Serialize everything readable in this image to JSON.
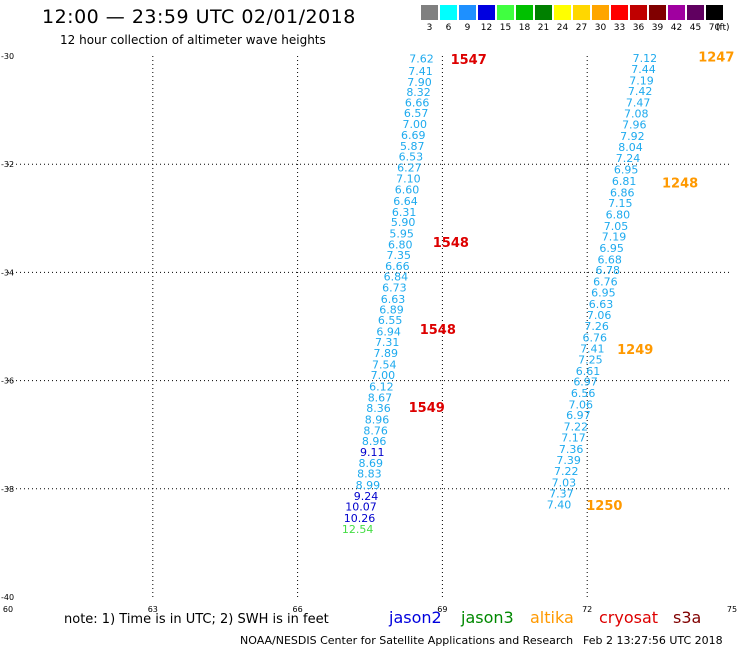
{
  "header": {
    "title": "12:00 — 23:59 UTC 02/01/2018",
    "subtitle": "12 hour collection of altimeter wave heights"
  },
  "color_scale": {
    "unit": "(ft)",
    "bins": [
      {
        "label": "3",
        "color": "#808080"
      },
      {
        "label": "6",
        "color": "#00ffff"
      },
      {
        "label": "9",
        "color": "#1e90ff"
      },
      {
        "label": "12",
        "color": "#0000e0"
      },
      {
        "label": "15",
        "color": "#40ff40"
      },
      {
        "label": "18",
        "color": "#00c000"
      },
      {
        "label": "21",
        "color": "#008000"
      },
      {
        "label": "24",
        "color": "#ffff00"
      },
      {
        "label": "27",
        "color": "#ffd700"
      },
      {
        "label": "30",
        "color": "#ffa500"
      },
      {
        "label": "33",
        "color": "#ff0000"
      },
      {
        "label": "36",
        "color": "#c00000"
      },
      {
        "label": "39",
        "color": "#800000"
      },
      {
        "label": "42",
        "color": "#a000a0"
      },
      {
        "label": "45",
        "color": "#600060"
      },
      {
        "label": "70",
        "color": "#000000"
      }
    ]
  },
  "notes": {
    "note": "note:  1) Time is in UTC;  2) SWH is in feet",
    "satellites": [
      {
        "name": "jason2",
        "color": "#0000dd"
      },
      {
        "name": "jason3",
        "color": "#008800"
      },
      {
        "name": "altika",
        "color": "#ff9900"
      },
      {
        "name": "cryosat",
        "color": "#dd0000"
      },
      {
        "name": "s3a",
        "color": "#800000"
      }
    ],
    "footer_left": "NOAA/NESDIS Center for Satellite Applications and Research",
    "footer_right": "Feb  2 13:27:56 UTC 2018"
  },
  "chart_data": {
    "type": "scatter",
    "xlim": [
      60,
      75
    ],
    "ylim": [
      -40,
      -30
    ],
    "x_ticks": [
      "60",
      "63",
      "66",
      "69",
      "72",
      "75"
    ],
    "y_ticks": [
      "-30",
      "-32",
      "-34",
      "-36",
      "-38",
      "-40"
    ],
    "grid": true,
    "series": [
      {
        "name": "track_west",
        "points": [
          {
            "x": 68.82,
            "y": -30.05,
            "v": "7.62",
            "c": "#1eaaee"
          },
          {
            "x": 68.8,
            "y": -30.28,
            "v": "7.41",
            "c": "#1eaaee"
          },
          {
            "x": 68.78,
            "y": -30.48,
            "v": "7.90",
            "c": "#1eaaee"
          },
          {
            "x": 68.76,
            "y": -30.67,
            "v": "8.32",
            "c": "#1eaaee"
          },
          {
            "x": 68.73,
            "y": -30.86,
            "v": "6.66",
            "c": "#1eaaee"
          },
          {
            "x": 68.71,
            "y": -31.05,
            "v": "6.57",
            "c": "#1eaaee"
          },
          {
            "x": 68.68,
            "y": -31.26,
            "v": "7.00",
            "c": "#1eaaee"
          },
          {
            "x": 68.65,
            "y": -31.46,
            "v": "6.69",
            "c": "#1eaaee"
          },
          {
            "x": 68.63,
            "y": -31.66,
            "v": "5.87",
            "c": "#1eaaee"
          },
          {
            "x": 68.6,
            "y": -31.86,
            "v": "6.53",
            "c": "#1eaaee"
          },
          {
            "x": 68.57,
            "y": -32.06,
            "v": "6.27",
            "c": "#1eaaee"
          },
          {
            "x": 68.55,
            "y": -32.26,
            "v": "7.10",
            "c": "#1eaaee"
          },
          {
            "x": 68.52,
            "y": -32.47,
            "v": "6.60",
            "c": "#1eaaee"
          },
          {
            "x": 68.49,
            "y": -32.68,
            "v": "6.64",
            "c": "#1eaaee"
          },
          {
            "x": 68.46,
            "y": -32.88,
            "v": "6.31",
            "c": "#1eaaee"
          },
          {
            "x": 68.44,
            "y": -33.07,
            "v": "5.90",
            "c": "#1eaaee"
          },
          {
            "x": 68.41,
            "y": -33.28,
            "v": "5.95",
            "c": "#1eaaee"
          },
          {
            "x": 68.38,
            "y": -33.48,
            "v": "6.80",
            "c": "#1eaaee"
          },
          {
            "x": 68.35,
            "y": -33.68,
            "v": "7.35",
            "c": "#1eaaee"
          },
          {
            "x": 68.32,
            "y": -33.88,
            "v": "6.66",
            "c": "#1eaaee"
          },
          {
            "x": 68.29,
            "y": -34.08,
            "v": "6.84",
            "c": "#1eaaee"
          },
          {
            "x": 68.26,
            "y": -34.28,
            "v": "6.73",
            "c": "#1eaaee"
          },
          {
            "x": 68.23,
            "y": -34.49,
            "v": "6.63",
            "c": "#1eaaee"
          },
          {
            "x": 68.2,
            "y": -34.69,
            "v": "6.89",
            "c": "#1eaaee"
          },
          {
            "x": 68.17,
            "y": -34.88,
            "v": "6.55",
            "c": "#1eaaee"
          },
          {
            "x": 68.14,
            "y": -35.09,
            "v": "6.94",
            "c": "#1eaaee"
          },
          {
            "x": 68.11,
            "y": -35.29,
            "v": "7.31",
            "c": "#1eaaee"
          },
          {
            "x": 68.08,
            "y": -35.49,
            "v": "7.89",
            "c": "#1eaaee"
          },
          {
            "x": 68.05,
            "y": -35.7,
            "v": "7.54",
            "c": "#1eaaee"
          },
          {
            "x": 68.02,
            "y": -35.9,
            "v": "7.00",
            "c": "#1eaaee"
          },
          {
            "x": 67.99,
            "y": -36.11,
            "v": "6.12",
            "c": "#1eaaee"
          },
          {
            "x": 67.96,
            "y": -36.31,
            "v": "8.67",
            "c": "#1eaaee"
          },
          {
            "x": 67.93,
            "y": -36.51,
            "v": "8.36",
            "c": "#1eaaee"
          },
          {
            "x": 67.9,
            "y": -36.72,
            "v": "8.96",
            "c": "#1eaaee"
          },
          {
            "x": 67.87,
            "y": -36.92,
            "v": "8.76",
            "c": "#1eaaee"
          },
          {
            "x": 67.84,
            "y": -37.12,
            "v": "8.96",
            "c": "#1eaaee"
          },
          {
            "x": 67.8,
            "y": -37.32,
            "v": "9.11",
            "c": "#0000cc"
          },
          {
            "x": 67.77,
            "y": -37.52,
            "v": "8.69",
            "c": "#1eaaee"
          },
          {
            "x": 67.74,
            "y": -37.72,
            "v": "8.83",
            "c": "#1eaaee"
          },
          {
            "x": 67.71,
            "y": -37.93,
            "v": "8.99",
            "c": "#1eaaee"
          },
          {
            "x": 67.67,
            "y": -38.13,
            "v": "9.24",
            "c": "#0000cc"
          },
          {
            "x": 67.64,
            "y": -38.33,
            "v": "10.07",
            "c": "#0000cc"
          },
          {
            "x": 67.61,
            "y": -38.54,
            "v": "10.26",
            "c": "#0000cc"
          },
          {
            "x": 67.57,
            "y": -38.74,
            "v": "12.54",
            "c": "#44dd44"
          }
        ]
      },
      {
        "name": "track_east",
        "points": [
          {
            "x": 73.45,
            "y": -30.04,
            "v": "7.12",
            "c": "#1eaaee"
          },
          {
            "x": 73.42,
            "y": -30.24,
            "v": "7.44",
            "c": "#1eaaee"
          },
          {
            "x": 73.38,
            "y": -30.45,
            "v": "7.19",
            "c": "#1eaaee"
          },
          {
            "x": 73.35,
            "y": -30.65,
            "v": "7.42",
            "c": "#1eaaee"
          },
          {
            "x": 73.31,
            "y": -30.86,
            "v": "7.47",
            "c": "#1eaaee"
          },
          {
            "x": 73.27,
            "y": -31.06,
            "v": "7.08",
            "c": "#1eaaee"
          },
          {
            "x": 73.23,
            "y": -31.27,
            "v": "7.96",
            "c": "#1eaaee"
          },
          {
            "x": 73.19,
            "y": -31.48,
            "v": "7.92",
            "c": "#1eaaee"
          },
          {
            "x": 73.15,
            "y": -31.68,
            "v": "8.04",
            "c": "#1eaaee"
          },
          {
            "x": 73.1,
            "y": -31.89,
            "v": "7.24",
            "c": "#1eaaee"
          },
          {
            "x": 73.06,
            "y": -32.1,
            "v": "6.95",
            "c": "#1eaaee"
          },
          {
            "x": 73.02,
            "y": -32.31,
            "v": "6.81",
            "c": "#1eaaee"
          },
          {
            "x": 72.98,
            "y": -32.52,
            "v": "6.86",
            "c": "#1eaaee"
          },
          {
            "x": 72.94,
            "y": -32.72,
            "v": "7.15",
            "c": "#1eaaee"
          },
          {
            "x": 72.89,
            "y": -32.93,
            "v": "6.80",
            "c": "#1eaaee"
          },
          {
            "x": 72.85,
            "y": -33.14,
            "v": "7.05",
            "c": "#1eaaee"
          },
          {
            "x": 72.81,
            "y": -33.34,
            "v": "7.19",
            "c": "#1eaaee"
          },
          {
            "x": 72.76,
            "y": -33.55,
            "v": "6.95",
            "c": "#1eaaee"
          },
          {
            "x": 72.72,
            "y": -33.76,
            "v": "6.68",
            "c": "#1eaaee"
          },
          {
            "x": 72.68,
            "y": -33.96,
            "v": "6.78",
            "c": "#1eaaee"
          },
          {
            "x": 72.63,
            "y": -34.17,
            "v": "6.76",
            "c": "#1eaaee"
          },
          {
            "x": 72.59,
            "y": -34.37,
            "v": "6.95",
            "c": "#1eaaee"
          },
          {
            "x": 72.54,
            "y": -34.58,
            "v": "6.63",
            "c": "#1eaaee"
          },
          {
            "x": 72.5,
            "y": -34.79,
            "v": "7.06",
            "c": "#1eaaee"
          },
          {
            "x": 72.45,
            "y": -34.99,
            "v": "7.26",
            "c": "#1eaaee"
          },
          {
            "x": 72.41,
            "y": -35.2,
            "v": "6.76",
            "c": "#1eaaee"
          },
          {
            "x": 72.36,
            "y": -35.41,
            "v": "7.41",
            "c": "#1eaaee"
          },
          {
            "x": 72.32,
            "y": -35.61,
            "v": "7.25",
            "c": "#1eaaee"
          },
          {
            "x": 72.27,
            "y": -35.82,
            "v": "6.61",
            "c": "#1eaaee"
          },
          {
            "x": 72.22,
            "y": -36.02,
            "v": "6.97",
            "c": "#1eaaee"
          },
          {
            "x": 72.17,
            "y": -36.23,
            "v": "6.56",
            "c": "#1eaaee"
          },
          {
            "x": 72.12,
            "y": -36.44,
            "v": "7.06",
            "c": "#1eaaee"
          },
          {
            "x": 72.07,
            "y": -36.64,
            "v": "6.97",
            "c": "#1eaaee"
          },
          {
            "x": 72.02,
            "y": -36.85,
            "v": "7.22",
            "c": "#1eaaee"
          },
          {
            "x": 71.97,
            "y": -37.05,
            "v": "7.17",
            "c": "#1eaaee"
          },
          {
            "x": 71.92,
            "y": -37.26,
            "v": "7.36",
            "c": "#1eaaee"
          },
          {
            "x": 71.87,
            "y": -37.47,
            "v": "7.39",
            "c": "#1eaaee"
          },
          {
            "x": 71.82,
            "y": -37.67,
            "v": "7.22",
            "c": "#1eaaee"
          },
          {
            "x": 71.77,
            "y": -37.88,
            "v": "7.03",
            "c": "#1eaaee"
          },
          {
            "x": 71.72,
            "y": -38.09,
            "v": "7.37",
            "c": "#1eaaee"
          },
          {
            "x": 71.67,
            "y": -38.29,
            "v": "7.40",
            "c": "#1eaaee"
          }
        ]
      }
    ],
    "time_labels": [
      {
        "text": "1547",
        "x": 69.17,
        "y": -30.06,
        "c": "#dd0000"
      },
      {
        "text": "1548",
        "x": 68.8,
        "y": -33.44,
        "c": "#dd0000"
      },
      {
        "text": "1548",
        "x": 68.53,
        "y": -35.05,
        "c": "#dd0000"
      },
      {
        "text": "1549",
        "x": 68.3,
        "y": -36.49,
        "c": "#dd0000"
      },
      {
        "text": "1247",
        "x": 74.3,
        "y": -30.01,
        "c": "#ff9900"
      },
      {
        "text": "1248",
        "x": 73.55,
        "y": -32.34,
        "c": "#ff9900"
      },
      {
        "text": "1249",
        "x": 72.62,
        "y": -35.42,
        "c": "#ff9900"
      },
      {
        "text": "1250",
        "x": 71.98,
        "y": -38.3,
        "c": "#ff9900"
      }
    ]
  }
}
